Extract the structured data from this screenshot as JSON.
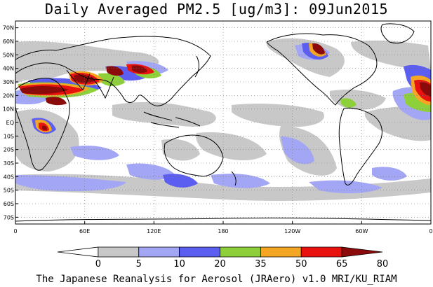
{
  "title": "Daily Averaged PM2.5 [ug/m3]: 09Jun2015",
  "credit": "The Japanese Reanalysis for Aerosol (JRAero) v1.0 MRI/KU_RIAM",
  "lat_ticks": [
    "70N",
    "60N",
    "50N",
    "40N",
    "30N",
    "20N",
    "10N",
    "EQ",
    "10S",
    "20S",
    "30S",
    "40S",
    "50S",
    "60S",
    "70S"
  ],
  "lon_ticks": [
    "0",
    "60E",
    "120E",
    "180",
    "120W",
    "60W",
    "0"
  ],
  "colorbar": {
    "labels": [
      "0",
      "5",
      "10",
      "20",
      "35",
      "50",
      "65",
      "80"
    ],
    "colors": [
      "#ffffff",
      "#c8c8c8",
      "#a3a6f4",
      "#5b5ef0",
      "#8ed03a",
      "#f5a623",
      "#e8120e",
      "#8b0a0a"
    ]
  },
  "colors": {
    "gray": "#c8c8c8",
    "light_blue": "#a3a6f4",
    "blue": "#5b5ef0",
    "green": "#8ed03a",
    "orange": "#f5a623",
    "red": "#e8120e",
    "dark_red": "#8b0a0a"
  }
}
